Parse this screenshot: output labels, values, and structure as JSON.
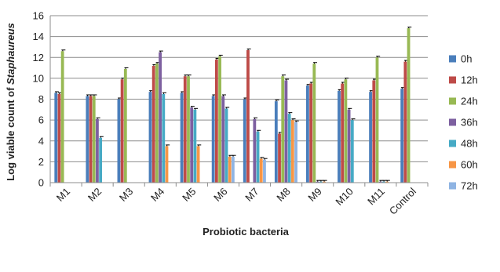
{
  "chart_data": {
    "type": "bar",
    "title": "",
    "xlabel": "Probiotic bacteria",
    "ylabel_prefix": "Log viable count of ",
    "ylabel_italic": "Staphaureus",
    "ylim": [
      0,
      16
    ],
    "yticks": [
      "0",
      "2",
      "4",
      "6",
      "8",
      "10",
      "12",
      "14",
      "16"
    ],
    "grid": true,
    "legend_position": "right",
    "categories": [
      "M1",
      "M2",
      "M3",
      "M4",
      "M5",
      "M6",
      "M7",
      "M8",
      "M9",
      "M10",
      "M11",
      "Control"
    ],
    "series": [
      {
        "name": "0h",
        "color": "#4a7ebb",
        "values": [
          8.6,
          8.3,
          8.0,
          8.7,
          8.6,
          8.3,
          8.0,
          7.8,
          9.3,
          8.8,
          8.7,
          9.0
        ]
      },
      {
        "name": "12h",
        "color": "#be4b48",
        "values": [
          8.5,
          8.3,
          9.9,
          11.2,
          10.2,
          11.8,
          12.7,
          4.7,
          9.5,
          9.5,
          9.8,
          11.6
        ]
      },
      {
        "name": "24h",
        "color": "#98b954",
        "values": [
          12.6,
          8.3,
          10.9,
          11.4,
          10.2,
          12.1,
          null,
          10.2,
          11.4,
          9.9,
          12.0,
          14.8
        ]
      },
      {
        "name": "36h",
        "color": "#7d60a0",
        "values": [
          null,
          6.1,
          null,
          12.5,
          7.2,
          8.3,
          6.1,
          9.8,
          0.1,
          7.0,
          0.1,
          null
        ]
      },
      {
        "name": "48h",
        "color": "#46aac5",
        "values": [
          null,
          4.3,
          null,
          8.5,
          7.0,
          7.1,
          4.9,
          6.6,
          0.1,
          6.0,
          0.1,
          null
        ]
      },
      {
        "name": "60h",
        "color": "#f79646",
        "values": [
          null,
          null,
          null,
          3.5,
          3.5,
          2.5,
          2.3,
          6.0,
          0.1,
          null,
          0.1,
          null
        ]
      },
      {
        "name": "72h",
        "color": "#8fb4e3",
        "values": [
          null,
          null,
          null,
          null,
          null,
          2.5,
          2.2,
          5.8,
          null,
          null,
          null,
          null
        ]
      }
    ]
  }
}
